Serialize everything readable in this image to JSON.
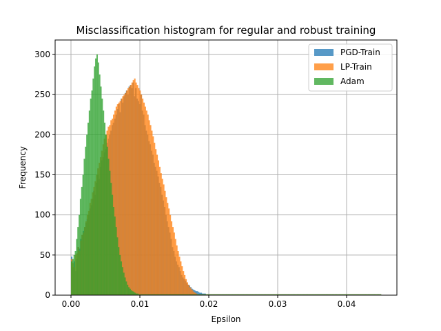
{
  "chart_data": {
    "type": "bar",
    "subtype": "overlapping-histogram",
    "title": "Misclassification histogram for regular and robust training",
    "xlabel": "Epsilon",
    "ylabel": "Frequency",
    "xlim": [
      -0.0023,
      0.0473
    ],
    "ylim": [
      0,
      318
    ],
    "grid": true,
    "legend_position": "top-right",
    "bar_opacity": 0.75,
    "x_ticks": [
      {
        "value": 0.0,
        "label": "0.00"
      },
      {
        "value": 0.01,
        "label": "0.01"
      },
      {
        "value": 0.02,
        "label": "0.02"
      },
      {
        "value": 0.03,
        "label": "0.03"
      },
      {
        "value": 0.04,
        "label": "0.04"
      }
    ],
    "y_ticks": [
      {
        "value": 0,
        "label": "0"
      },
      {
        "value": 50,
        "label": "50"
      },
      {
        "value": 100,
        "label": "100"
      },
      {
        "value": 150,
        "label": "150"
      },
      {
        "value": 200,
        "label": "200"
      },
      {
        "value": 250,
        "label": "250"
      },
      {
        "value": 300,
        "label": "300"
      }
    ],
    "series": [
      {
        "name": "PGD-Train",
        "color": "#1f77b4",
        "range": [
          0.0,
          0.045
        ],
        "counts": [
          48,
          35,
          42,
          30,
          45,
          60,
          58,
          70,
          75,
          80,
          85,
          90,
          95,
          100,
          108,
          112,
          120,
          130,
          125,
          140,
          150,
          145,
          160,
          168,
          172,
          178,
          182,
          190,
          195,
          200,
          205,
          212,
          215,
          220,
          225,
          232,
          238,
          228,
          245,
          240,
          248,
          252,
          255,
          250,
          260,
          262,
          258,
          265,
          248,
          258,
          245,
          242,
          238,
          250,
          230,
          225,
          212,
          205,
          200,
          192,
          188,
          180,
          175,
          165,
          160,
          155,
          148,
          140,
          135,
          125,
          118,
          110,
          100,
          92,
          85,
          78,
          70,
          60,
          55,
          48,
          42,
          38,
          35,
          30,
          25,
          22,
          20,
          18,
          15,
          13,
          12,
          10,
          8,
          7,
          6,
          5,
          5,
          4,
          3,
          3,
          2,
          2,
          2,
          1,
          1,
          1,
          1,
          1,
          1,
          1,
          1,
          1,
          1,
          1,
          1,
          1,
          1,
          1,
          1,
          1,
          1,
          1,
          1,
          1,
          1,
          1,
          1,
          1,
          1,
          1,
          1,
          1,
          1,
          1,
          1,
          1,
          1,
          1,
          1,
          1,
          1,
          1,
          1,
          1,
          1,
          1,
          1,
          1,
          1,
          1,
          1,
          1,
          1,
          1,
          1,
          1,
          1,
          1,
          1,
          1,
          1,
          1,
          1,
          1,
          1,
          1,
          1,
          1,
          1,
          1,
          1,
          1,
          1,
          1,
          1,
          1,
          1,
          1,
          1,
          1,
          1,
          1,
          1,
          1,
          1,
          1,
          1,
          1,
          1,
          1,
          1,
          1,
          1,
          1,
          1,
          1,
          1,
          1,
          1,
          1,
          1,
          1,
          1,
          1,
          1,
          1,
          1,
          1,
          1,
          1,
          1,
          1,
          1,
          1,
          1,
          1,
          1,
          1,
          1,
          1,
          1,
          1,
          1,
          1,
          1,
          1,
          1,
          1,
          1,
          1,
          1,
          1,
          1,
          1,
          1,
          1,
          1
        ]
      },
      {
        "name": "LP-Train",
        "color": "#ff7f0e",
        "range": [
          0.0,
          0.045
        ],
        "counts": [
          45,
          40,
          35,
          50,
          52,
          60,
          55,
          68,
          75,
          78,
          85,
          92,
          100,
          105,
          115,
          120,
          128,
          135,
          142,
          150,
          158,
          165,
          172,
          180,
          188,
          195,
          200,
          205,
          210,
          212,
          218,
          220,
          225,
          230,
          235,
          238,
          240,
          242,
          245,
          248,
          250,
          252,
          255,
          258,
          260,
          262,
          265,
          268,
          270,
          265,
          262,
          258,
          255,
          250,
          245,
          240,
          235,
          230,
          225,
          218,
          212,
          205,
          198,
          190,
          182,
          175,
          168,
          160,
          152,
          145,
          138,
          130,
          122,
          115,
          108,
          100,
          92,
          85,
          78,
          70,
          62,
          55,
          48,
          42,
          36,
          30,
          25,
          20,
          16,
          13,
          10,
          8,
          6,
          4,
          3,
          2,
          1,
          1,
          1,
          1,
          1,
          1,
          1,
          1,
          1,
          1,
          1,
          1,
          1,
          1,
          1,
          1,
          1,
          1,
          1,
          1,
          1,
          1,
          1,
          1,
          1,
          1,
          1,
          1,
          1,
          1,
          1,
          1,
          1,
          1,
          1,
          1,
          1,
          1,
          1,
          1,
          1,
          1,
          1,
          1,
          1,
          1,
          1,
          1,
          1,
          1,
          1,
          1,
          1,
          1,
          1,
          1,
          1,
          1,
          1,
          1,
          1,
          1,
          1,
          1,
          1,
          1,
          1,
          1,
          1,
          1,
          1,
          1,
          1,
          1,
          1,
          1,
          1,
          1,
          1,
          1,
          1,
          1,
          1,
          1,
          1,
          1,
          1,
          1,
          1,
          1,
          1,
          1,
          1,
          1,
          1,
          1,
          1,
          1,
          1,
          1,
          1,
          1,
          1,
          1,
          1,
          1,
          1,
          1,
          1,
          1,
          1,
          1,
          1,
          1,
          1,
          1,
          1,
          1,
          1,
          1,
          1,
          1,
          1,
          1,
          1,
          1,
          1,
          1,
          1,
          1,
          1,
          1,
          1,
          1,
          1,
          1,
          1,
          1,
          1,
          1
        ]
      },
      {
        "name": "Adam",
        "color": "#2ca02c",
        "range": [
          0.0,
          0.045
        ],
        "counts": [
          42,
          45,
          50,
          55,
          70,
          85,
          100,
          120,
          135,
          150,
          170,
          185,
          200,
          215,
          230,
          245,
          255,
          270,
          285,
          295,
          300,
          290,
          275,
          260,
          245,
          230,
          215,
          200,
          185,
          170,
          155,
          140,
          125,
          110,
          98,
          85,
          72,
          60,
          50,
          42,
          35,
          28,
          22,
          17,
          13,
          10,
          8,
          6,
          5,
          4,
          3,
          2,
          2,
          1,
          1,
          1,
          1,
          1,
          1,
          1,
          1,
          1,
          1,
          1,
          1,
          1,
          1,
          1,
          1,
          1,
          1,
          1,
          1,
          1,
          1,
          1,
          1,
          1,
          1,
          1,
          1,
          1,
          1,
          1,
          1,
          1,
          1,
          1,
          1,
          1,
          1,
          1,
          1,
          1,
          1,
          1,
          1,
          1,
          1,
          1,
          1,
          1,
          1,
          1,
          1,
          1,
          1,
          1,
          1,
          1,
          1,
          1,
          1,
          1,
          1,
          1,
          1,
          1,
          1,
          1,
          1,
          1,
          1,
          1,
          1,
          1,
          1,
          1,
          1,
          1,
          1,
          1,
          1,
          1,
          1,
          1,
          1,
          1,
          1,
          1,
          1,
          1,
          1,
          1,
          1,
          1,
          1,
          1,
          1,
          1,
          1,
          1,
          1,
          1,
          1,
          1,
          1,
          1,
          1,
          1,
          1,
          1,
          1,
          1,
          1,
          1,
          1,
          1,
          1,
          1,
          1,
          1,
          1,
          1,
          1,
          1,
          1,
          1,
          1,
          1,
          1,
          1,
          1,
          1,
          1,
          1,
          1,
          1,
          1,
          1,
          1,
          1,
          1,
          1,
          1,
          1,
          1,
          1,
          1,
          1,
          1,
          1,
          1,
          1,
          1,
          1,
          1,
          1,
          1,
          1,
          1,
          1,
          1,
          1,
          1,
          1,
          1,
          1,
          1,
          1,
          1,
          1,
          1,
          1,
          1,
          1,
          1,
          1,
          1,
          1,
          1,
          1,
          1,
          1,
          1,
          1,
          1,
          1,
          1,
          1,
          1,
          1,
          1,
          1
        ]
      }
    ]
  }
}
